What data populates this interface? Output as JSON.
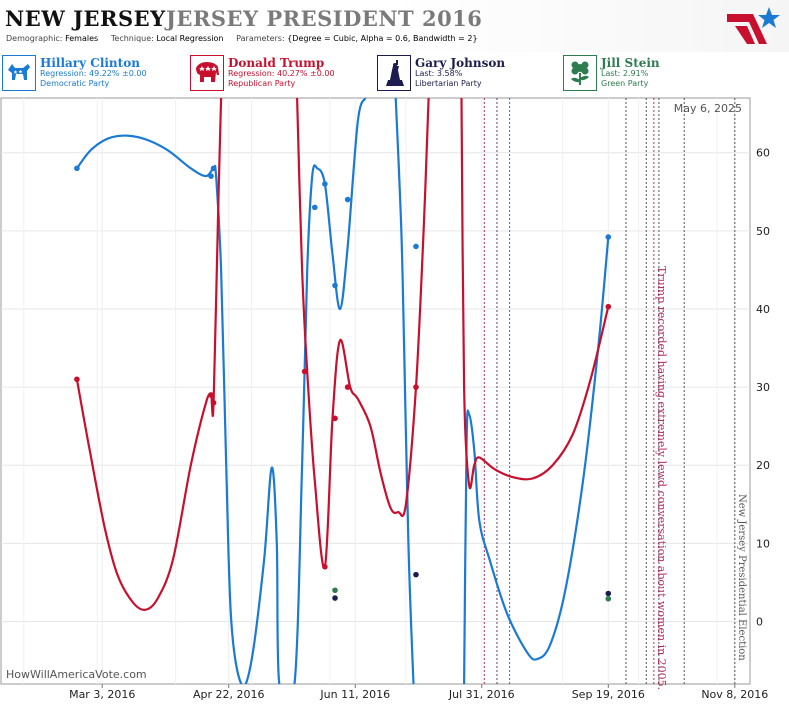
{
  "header": {
    "state": "NEW JERSEY",
    "race": "JERSEY PRESIDENT 2016",
    "params": {
      "demographic_label": "Demographic:",
      "demographic_value": "Females",
      "technique_label": "Technique:",
      "technique_value": "Local Regression",
      "parameters_label": "Parameters:",
      "parameters_value": "{Degree = Cubic, Alpha = 0.6, Bandwidth = 2}"
    }
  },
  "candidates": [
    {
      "name": "Hillary Clinton",
      "line1": "Regression: 49.22% ±0.00",
      "line2": "Democratic Party",
      "color": "#1a7ad4",
      "icon": "donkey-icon"
    },
    {
      "name": "Donald Trump",
      "line1": "Regression: 40.27% ±0.00",
      "line2": "Republican Party",
      "color": "#c8102e",
      "icon": "elephant-icon"
    },
    {
      "name": "Gary Johnson",
      "line1": "Last: 3.58%",
      "line2": "Libertarian Party",
      "color": "#1c1c50",
      "icon": "liberty-icon"
    },
    {
      "name": "Jill Stein",
      "line1": "Last: 2.91%",
      "line2": "Green Party",
      "color": "#2e7d4f",
      "icon": "flower-icon"
    }
  ],
  "chart_data": {
    "type": "line",
    "date_label": "May 6, 2025",
    "watermark": "HowWillAmericaVote.com",
    "x_ticks": [
      "Mar 3, 2016",
      "Apr 22, 2016",
      "Jun 11, 2016",
      "Jul 31, 2016",
      "Sep 19, 2016",
      "Nov 8, 2016"
    ],
    "xlim": [
      "2016-01-23",
      "2016-11-14"
    ],
    "y_ticks": [
      0,
      10,
      20,
      30,
      40,
      50,
      60
    ],
    "ylim": [
      -8,
      67
    ],
    "grid": true,
    "annotations": [
      {
        "date": "2016-10-07",
        "text": "Trump recorded having extremely lewd conversation about women in 2005."
      },
      {
        "date": "2016-11-08",
        "text": "New Jersey Presidential Election"
      }
    ],
    "event_lines": [
      {
        "date": "2016-08-01",
        "color": "#b03060",
        "style": "dotted"
      },
      {
        "date": "2016-08-06",
        "color": "#6a3d6a",
        "style": "dotted"
      },
      {
        "date": "2016-08-11",
        "color": "#1a7ad4",
        "style": "dotted"
      },
      {
        "date": "2016-09-26",
        "color": "#555555",
        "style": "dotted"
      },
      {
        "date": "2016-10-04",
        "color": "#555555",
        "style": "dotted"
      },
      {
        "date": "2016-10-07",
        "color": "#b03060",
        "style": "dotted"
      },
      {
        "date": "2016-10-09",
        "color": "#555555",
        "style": "dotted"
      },
      {
        "date": "2016-10-19",
        "color": "#555555",
        "style": "dotted"
      },
      {
        "date": "2016-11-08",
        "color": "#555555",
        "style": "dotted"
      }
    ],
    "series": [
      {
        "name": "Hillary Clinton",
        "color": "#1a7ad4",
        "line": [
          [
            "2016-02-22",
            58
          ],
          [
            "2016-02-28",
            60.5
          ],
          [
            "2016-03-07",
            62
          ],
          [
            "2016-03-17",
            62
          ],
          [
            "2016-03-28",
            60.5
          ],
          [
            "2016-04-07",
            58
          ],
          [
            "2016-04-13",
            57
          ],
          [
            "2016-04-16",
            58
          ],
          [
            "2016-04-17",
            57
          ],
          [
            "2016-04-19",
            45
          ],
          [
            "2016-04-21",
            20
          ],
          [
            "2016-04-23",
            0
          ],
          [
            "2016-04-27",
            -8
          ],
          [
            "2016-05-01",
            -5
          ],
          [
            "2016-05-06",
            8
          ],
          [
            "2016-05-09",
            19.7
          ],
          [
            "2016-05-11",
            10
          ],
          [
            "2016-05-12",
            -8
          ],
          [
            "2016-05-18",
            -8
          ],
          [
            "2016-05-21",
            20
          ],
          [
            "2016-05-23",
            45
          ],
          [
            "2016-05-25",
            57
          ],
          [
            "2016-05-27",
            58
          ],
          [
            "2016-05-30",
            56
          ],
          [
            "2016-06-02",
            47
          ],
          [
            "2016-06-05",
            40
          ],
          [
            "2016-06-08",
            48
          ],
          [
            "2016-06-12",
            64
          ],
          [
            "2016-06-15",
            67
          ]
        ],
        "line2": [
          [
            "2016-06-27",
            67
          ],
          [
            "2016-06-29",
            52
          ],
          [
            "2016-06-30",
            40
          ],
          [
            "2016-07-02",
            10
          ],
          [
            "2016-07-04",
            -8
          ]
        ],
        "line3": [
          [
            "2016-07-24",
            -8
          ],
          [
            "2016-07-25",
            23
          ],
          [
            "2016-07-26",
            26.5
          ],
          [
            "2016-07-28",
            22
          ],
          [
            "2016-07-30",
            13
          ],
          [
            "2016-08-03",
            8
          ],
          [
            "2016-08-10",
            1
          ],
          [
            "2016-08-18",
            -4
          ],
          [
            "2016-08-22",
            -4.8
          ],
          [
            "2016-08-27",
            -3
          ],
          [
            "2016-09-02",
            4
          ],
          [
            "2016-09-09",
            18
          ],
          [
            "2016-09-15",
            35
          ],
          [
            "2016-09-19",
            49.2
          ]
        ],
        "points": [
          [
            "2016-02-22",
            58
          ],
          [
            "2016-04-15",
            57
          ],
          [
            "2016-04-16",
            58
          ],
          [
            "2016-05-26",
            53
          ],
          [
            "2016-05-30",
            56
          ],
          [
            "2016-06-03",
            43
          ],
          [
            "2016-06-08",
            54
          ],
          [
            "2016-07-05",
            48
          ],
          [
            "2016-09-19",
            49.2
          ]
        ]
      },
      {
        "name": "Donald Trump",
        "color": "#c8102e",
        "line": [
          [
            "2016-02-22",
            31
          ],
          [
            "2016-02-27",
            22
          ],
          [
            "2016-03-04",
            12
          ],
          [
            "2016-03-09",
            6
          ],
          [
            "2016-03-15",
            2.5
          ],
          [
            "2016-03-20",
            1.5
          ],
          [
            "2016-03-25",
            3
          ],
          [
            "2016-03-31",
            8
          ],
          [
            "2016-04-07",
            20
          ],
          [
            "2016-04-13",
            28
          ],
          [
            "2016-04-15",
            29
          ],
          [
            "2016-04-16",
            28
          ],
          [
            "2016-04-18",
            55
          ],
          [
            "2016-04-19",
            67
          ]
        ],
        "line2": [
          [
            "2016-05-19",
            67
          ],
          [
            "2016-05-21",
            45
          ],
          [
            "2016-05-23",
            32
          ],
          [
            "2016-05-26",
            18
          ],
          [
            "2016-05-30",
            7
          ],
          [
            "2016-06-02",
            26
          ],
          [
            "2016-06-05",
            36
          ],
          [
            "2016-06-09",
            30
          ],
          [
            "2016-06-12",
            28.5
          ],
          [
            "2016-06-17",
            25
          ],
          [
            "2016-06-21",
            19
          ],
          [
            "2016-06-25",
            14.5
          ],
          [
            "2016-06-28",
            14
          ],
          [
            "2016-07-01",
            15
          ],
          [
            "2016-07-05",
            30
          ],
          [
            "2016-07-08",
            50
          ],
          [
            "2016-07-10",
            67
          ]
        ],
        "line3": [
          [
            "2016-07-23",
            67
          ],
          [
            "2016-07-24",
            30
          ],
          [
            "2016-07-26",
            17.5
          ],
          [
            "2016-07-28",
            20
          ],
          [
            "2016-07-30",
            21
          ],
          [
            "2016-08-05",
            19.5
          ],
          [
            "2016-08-12",
            18.5
          ],
          [
            "2016-08-20",
            18.3
          ],
          [
            "2016-08-28",
            20
          ],
          [
            "2016-09-05",
            24
          ],
          [
            "2016-09-12",
            31
          ],
          [
            "2016-09-19",
            40.3
          ]
        ],
        "points": [
          [
            "2016-02-22",
            31
          ],
          [
            "2016-04-15",
            29
          ],
          [
            "2016-04-16",
            28
          ],
          [
            "2016-05-22",
            32
          ],
          [
            "2016-05-30",
            7
          ],
          [
            "2016-06-03",
            26
          ],
          [
            "2016-06-08",
            30
          ],
          [
            "2016-07-05",
            30
          ],
          [
            "2016-09-19",
            40.3
          ]
        ]
      },
      {
        "name": "Gary Johnson",
        "color": "#1c1c50",
        "points": [
          [
            "2016-06-03",
            3
          ],
          [
            "2016-07-05",
            6
          ],
          [
            "2016-09-19",
            3.58
          ]
        ]
      },
      {
        "name": "Jill Stein",
        "color": "#2e7d4f",
        "points": [
          [
            "2016-06-03",
            4
          ],
          [
            "2016-09-19",
            2.91
          ]
        ]
      }
    ]
  }
}
